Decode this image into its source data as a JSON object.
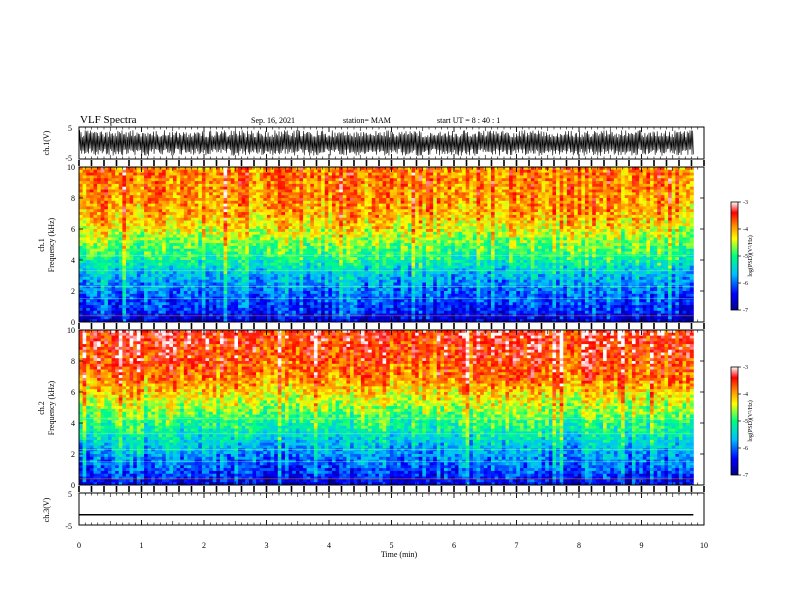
{
  "header": {
    "title": "VLF Spectra",
    "date": "Sep. 16, 2021",
    "station": "station= MAM",
    "start": "start  UT  =   8  : 40 : 1"
  },
  "colors": {
    "spectrogram_scale": [
      "#00008b",
      "#0000ff",
      "#00bfff",
      "#00ff80",
      "#ffff00",
      "#ff8c00",
      "#ff0000",
      "#ffffff"
    ]
  },
  "chart_data": [
    {
      "type": "line",
      "panel": "ch1-waveform",
      "ylabel": "ch.1(V)",
      "ylim": [
        -5,
        5
      ],
      "yticks": [
        "5",
        "-5"
      ],
      "xlim": [
        0,
        10
      ],
      "description_series": "noisy waveform, amplitude approx ±4 V",
      "x": [
        0,
        9.83
      ],
      "amplitude_range": [
        -4,
        4
      ]
    },
    {
      "type": "heatmap",
      "panel": "ch1-spectrogram",
      "ylabel": "ch.1 Frequency (kHz)",
      "ylim": [
        0,
        10
      ],
      "yticks": [
        "0",
        "2",
        "4",
        "6",
        "8",
        "10"
      ],
      "xlim": [
        0,
        10
      ],
      "data_extent_min": [
        0,
        9.83
      ],
      "colorbar": {
        "label": "log(PSD)(V²/Hz)",
        "range": [
          -7,
          -3
        ],
        "ticks": [
          "-3",
          "-4",
          "-5",
          "-6",
          "-7"
        ]
      },
      "freq_levels_khz": [
        0,
        0.5,
        1,
        2,
        3,
        4,
        5,
        6,
        7,
        8,
        9,
        10
      ],
      "log_psd": [
        -6.7,
        -6.3,
        -6.2,
        -5.9,
        -5.6,
        -5.1,
        -4.7,
        -4.3,
        -4.0,
        -3.9,
        -3.8,
        -3.8
      ]
    },
    {
      "type": "heatmap",
      "panel": "ch2-spectrogram",
      "ylabel": "ch.2 Frequency (kHz)",
      "ylim": [
        0,
        10
      ],
      "yticks": [
        "0",
        "2",
        "4",
        "6",
        "8",
        "10"
      ],
      "xlim": [
        0,
        10
      ],
      "data_extent_min": [
        0,
        9.83
      ],
      "colorbar": {
        "label": "log(PSD)(V²/Hz)",
        "range": [
          -7,
          -3
        ],
        "ticks": [
          "-3",
          "-4",
          "-5",
          "-6",
          "-7"
        ]
      },
      "freq_levels_khz": [
        0,
        0.5,
        1,
        2,
        3,
        4,
        5,
        6,
        7,
        8,
        9,
        10
      ],
      "log_psd": [
        -6.6,
        -6.3,
        -6.1,
        -5.8,
        -5.4,
        -5.0,
        -4.6,
        -4.2,
        -3.8,
        -3.6,
        -3.5,
        -3.4
      ]
    },
    {
      "type": "line",
      "panel": "ch3-waveform",
      "ylabel": "ch.3(V)",
      "ylim": [
        -5,
        5
      ],
      "yticks": [
        "5",
        "-5"
      ],
      "xlim": [
        0,
        10
      ],
      "x": [
        0,
        9.83
      ],
      "y": [
        -1.8,
        -1.8
      ]
    }
  ],
  "xaxis": {
    "label": "Time  (min)",
    "ticks": [
      "0",
      "1",
      "2",
      "3",
      "4",
      "5",
      "6",
      "7",
      "8",
      "9",
      "10"
    ]
  }
}
